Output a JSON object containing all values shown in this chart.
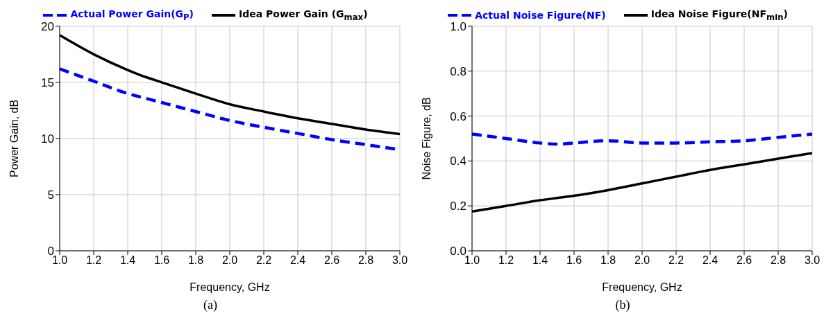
{
  "chart_data": [
    {
      "type": "line",
      "xlabel": "Frequency, GHz",
      "ylabel": "Power Gain, dB",
      "x": [
        1.0,
        1.2,
        1.4,
        1.5,
        1.6,
        1.8,
        2.0,
        2.2,
        2.4,
        2.6,
        2.8,
        3.0
      ],
      "series": [
        {
          "name": "Actual Power Gain(G$_{P}$)",
          "color": "#0000ff",
          "line_style": "dashed",
          "values": [
            16.2,
            15.1,
            14.0,
            13.6,
            13.2,
            12.4,
            11.6,
            11.0,
            10.45,
            9.9,
            9.45,
            9.0
          ]
        },
        {
          "name": "Idea Power Gain (G$_{max}$)",
          "color": "#000000",
          "line_style": "solid",
          "values": [
            19.2,
            17.5,
            16.1,
            15.5,
            15.0,
            14.0,
            13.05,
            12.4,
            11.8,
            11.3,
            10.8,
            10.4
          ]
        }
      ],
      "xlim": [
        1,
        3
      ],
      "xticks": [
        {
          "value": 1,
          "label": "1.0"
        },
        1.2,
        1.4,
        1.6,
        1.8,
        {
          "value": 2,
          "label": "2.0"
        },
        2.2,
        2.4,
        2.6,
        2.8,
        {
          "value": 3,
          "label": "3.0"
        }
      ],
      "ylim": [
        0,
        20
      ],
      "yticks": [
        0,
        5,
        10,
        15,
        20
      ],
      "grid": true,
      "legend": "top",
      "annotations": [
        "(a)"
      ]
    },
    {
      "type": "line",
      "xlabel": "Frequency, GHz",
      "ylabel": "Noise Figure, dB",
      "x": [
        1.0,
        1.2,
        1.4,
        1.5,
        1.6,
        1.8,
        2.0,
        2.2,
        2.4,
        2.6,
        2.8,
        3.0
      ],
      "series": [
        {
          "name": "Actual Noise Figure(NF)",
          "color": "#0000ff",
          "line_style": "dashed",
          "values": [
            0.52,
            0.5,
            0.48,
            0.475,
            0.48,
            0.49,
            0.48,
            0.48,
            0.485,
            0.49,
            0.505,
            0.52
          ]
        },
        {
          "name": "Idea Noise Figure(NF$_{min}$)",
          "color": "#000000",
          "line_style": "solid",
          "values": [
            0.175,
            0.2,
            0.225,
            0.235,
            0.245,
            0.27,
            0.3,
            0.33,
            0.36,
            0.385,
            0.41,
            0.435
          ]
        }
      ],
      "xlim": [
        1,
        3
      ],
      "xticks": [
        {
          "value": 1,
          "label": "1.0"
        },
        1.2,
        1.4,
        1.6,
        1.8,
        {
          "value": 2,
          "label": "2.0"
        },
        2.2,
        2.4,
        2.6,
        2.8,
        {
          "value": 3,
          "label": "3.0"
        }
      ],
      "ylim": [
        0,
        1
      ],
      "yticks": [
        {
          "value": 0,
          "label": "0.0"
        },
        0.2,
        0.4,
        0.6,
        0.8,
        {
          "value": 1,
          "label": "1.0"
        }
      ],
      "grid": true,
      "legend": "top",
      "annotations": [
        "(b)"
      ]
    }
  ]
}
